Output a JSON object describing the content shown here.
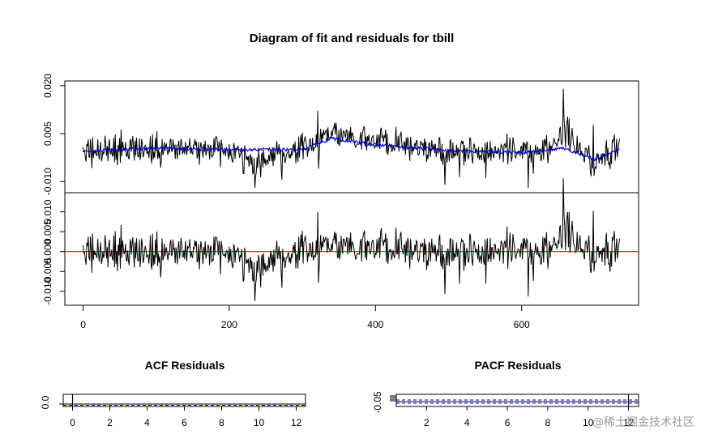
{
  "title": "Diagram of fit and residuals for tbill",
  "watermark": "@稀土掘金技术社区",
  "colors": {
    "actual": "#000000",
    "fit": "#0000cc",
    "zero_line": "#ff0000",
    "confidence": "#0000cc"
  },
  "chart_data": [
    {
      "type": "line",
      "panel": "fit",
      "x_range": [
        1,
        735
      ],
      "xlim": [
        -25,
        760
      ],
      "ylim": [
        -0.0135,
        0.0215
      ],
      "yticks": [
        "0.020",
        "0.005",
        "-0.010"
      ],
      "ytick_values": [
        0.02,
        0.005,
        -0.01
      ],
      "series": [
        {
          "role": "actual",
          "description_points": [
            [
              0,
              -0.001
            ],
            [
              100,
              0.0005
            ],
            [
              200,
              -0.0005
            ],
            [
              235,
              -0.012
            ],
            [
              300,
              0.0
            ],
            [
              340,
              0.0065
            ],
            [
              400,
              0.002
            ],
            [
              500,
              0.0
            ],
            [
              560,
              0.0005
            ],
            [
              600,
              -0.001
            ],
            [
              640,
              -0.0015
            ],
            [
              657,
              0.019
            ],
            [
              700,
              -0.004
            ],
            [
              735,
              0.004
            ]
          ]
        },
        {
          "role": "fit",
          "description_points": [
            [
              0,
              -0.0005
            ],
            [
              100,
              0.0005
            ],
            [
              200,
              0.0
            ],
            [
              300,
              0.0
            ],
            [
              340,
              0.0035
            ],
            [
              400,
              0.0015
            ],
            [
              500,
              -0.0003
            ],
            [
              600,
              -0.001
            ],
            [
              657,
              0.0005
            ],
            [
              700,
              -0.003
            ],
            [
              735,
              0.0
            ]
          ]
        }
      ]
    },
    {
      "type": "line",
      "panel": "residuals",
      "x_range": [
        1,
        735
      ],
      "xlim": [
        -25,
        760
      ],
      "ylim": [
        -0.0135,
        0.0148
      ],
      "yticks": [
        "0.010",
        "0.005",
        "0.000",
        "-0.005",
        "-0.010"
      ],
      "ytick_values": [
        0.01,
        0.005,
        0.0,
        -0.005,
        -0.01
      ],
      "xticks": [
        "0",
        "200",
        "400",
        "600"
      ],
      "xtick_values": [
        0,
        200,
        400,
        600
      ],
      "reference_line": 0.0,
      "residual_envelope": [
        [
          0,
          0.004
        ],
        [
          100,
          0.005
        ],
        [
          235,
          -0.0125
        ],
        [
          340,
          0.0065
        ],
        [
          500,
          0.004
        ],
        [
          600,
          0.006
        ],
        [
          657,
          0.0145
        ],
        [
          700,
          -0.007
        ],
        [
          735,
          0.004
        ]
      ]
    },
    {
      "type": "line",
      "title": "ACF Residuals",
      "xticks": [
        "0",
        "2",
        "4",
        "6",
        "8",
        "10",
        "12"
      ],
      "xtick_values": [
        0,
        2,
        4,
        6,
        8,
        10,
        12
      ],
      "xlim": [
        -0.5,
        12.5
      ],
      "yticks": [
        "0.0"
      ],
      "ytick_values": [
        0.0
      ],
      "lag0_value": 1.0
    },
    {
      "type": "line",
      "title": "PACF Residuals",
      "xticks": [
        "2",
        "4",
        "6",
        "8",
        "10",
        "12"
      ],
      "xtick_values": [
        2,
        4,
        6,
        8,
        10,
        12
      ],
      "xlim": [
        0.5,
        12.5
      ],
      "yticks": [
        "-0.05"
      ],
      "ytick_values": [
        -0.05
      ]
    }
  ]
}
